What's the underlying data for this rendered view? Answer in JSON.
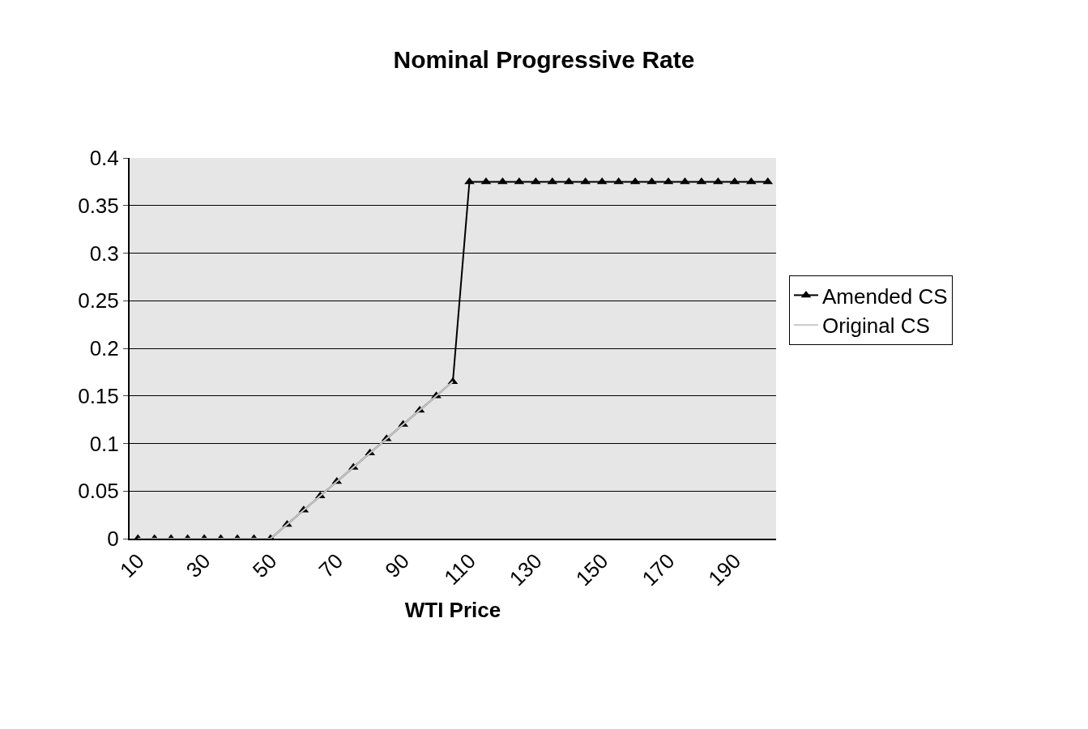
{
  "chart_data": {
    "type": "line",
    "title": "Nominal Progressive Rate",
    "xlabel": "WTI Price",
    "x": [
      10,
      15,
      20,
      25,
      30,
      35,
      40,
      45,
      50,
      55,
      60,
      65,
      70,
      75,
      80,
      85,
      90,
      95,
      100,
      105,
      110,
      115,
      120,
      125,
      130,
      135,
      140,
      145,
      150,
      155,
      160,
      165,
      170,
      175,
      180,
      185,
      190,
      195,
      200
    ],
    "xlim": [
      7.5,
      202.5
    ],
    "xticks": [
      10,
      30,
      50,
      70,
      90,
      110,
      130,
      150,
      170,
      190
    ],
    "series": [
      {
        "name": "Amended CS",
        "color": "#000000",
        "marker": "triangle",
        "values": [
          0,
          0,
          0,
          0,
          0,
          0,
          0,
          0,
          0,
          0.015,
          0.03,
          0.045,
          0.06,
          0.075,
          0.09,
          0.105,
          0.12,
          0.135,
          0.15,
          0.165,
          0.375,
          0.375,
          0.375,
          0.375,
          0.375,
          0.375,
          0.375,
          0.375,
          0.375,
          0.375,
          0.375,
          0.375,
          0.375,
          0.375,
          0.375,
          0.375,
          0.375,
          0.375,
          0.375
        ]
      },
      {
        "name": "Original CS",
        "color": "#c8c8c8",
        "marker": "none",
        "values": [
          0,
          0,
          0,
          0,
          0,
          0,
          0,
          0,
          0,
          0.015,
          0.03,
          0.045,
          0.06,
          0.075,
          0.09,
          0.105,
          0.12,
          0.135,
          0.15,
          0.165,
          null,
          null,
          null,
          null,
          null,
          null,
          null,
          null,
          null,
          null,
          null,
          null,
          null,
          null,
          null,
          null,
          null,
          null,
          null
        ]
      }
    ],
    "ylim": [
      0,
      0.4
    ],
    "yticks": [
      0,
      0.05,
      0.1,
      0.15,
      0.2,
      0.25,
      0.3,
      0.35,
      0.4
    ],
    "grid": "y",
    "legend": "right"
  }
}
